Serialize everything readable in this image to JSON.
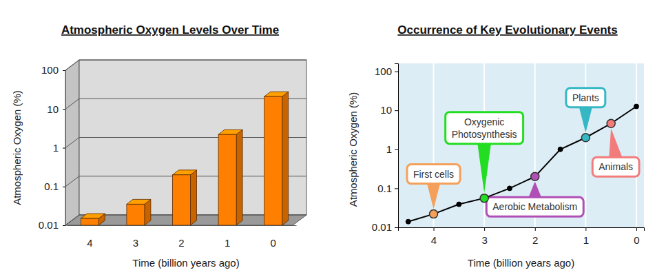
{
  "chart_data": [
    {
      "type": "bar",
      "title": "Atmospheric Oxygen Levels Over Time",
      "x_label": "Time (billion years ago)",
      "y_label": "Atmospheric Oxygen (%)",
      "categories": [
        "4",
        "3",
        "2",
        "1",
        "0"
      ],
      "values": [
        0.015,
        0.035,
        0.2,
        2.2,
        21
      ],
      "color": "#ff8000",
      "log": "y",
      "ylim": [
        0.01,
        100
      ],
      "yticks": [
        0.01,
        0.1,
        1,
        10,
        100
      ],
      "grid": true
    },
    {
      "type": "line",
      "title": "Occurrence of Key Evolutionary Events",
      "x_label": "Time (billion years ago)",
      "y_label": "Atmospheric Oxygen (%)",
      "x": [
        4.5,
        4,
        3.5,
        3,
        2.5,
        2,
        1.5,
        1,
        0.5,
        0
      ],
      "values": [
        0.014,
        0.022,
        0.039,
        0.056,
        0.1,
        0.2,
        1,
        2,
        4.6,
        12.6
      ],
      "color": "#000000",
      "marker": "circle",
      "log": "y",
      "xlim": [
        4.7,
        -0.15
      ],
      "xticks": [
        4,
        3,
        2,
        1,
        0
      ],
      "ylim": [
        0.01,
        160
      ],
      "yticks": [
        0.01,
        0.1,
        1,
        10,
        100
      ],
      "grid": "x",
      "annotations": [
        {
          "text": "First cells",
          "x": 4,
          "color": "#f5a05a"
        },
        {
          "text": "Oxygenic Photosynthesis",
          "x": 3,
          "color": "#22dd22"
        },
        {
          "text": "Aerobic Metabolism",
          "x": 2,
          "color": "#b04fb5"
        },
        {
          "text": "Plants",
          "x": 1,
          "color": "#36b8c4"
        },
        {
          "text": "Animals",
          "x": 0.5,
          "color": "#f27c7c"
        }
      ]
    }
  ]
}
